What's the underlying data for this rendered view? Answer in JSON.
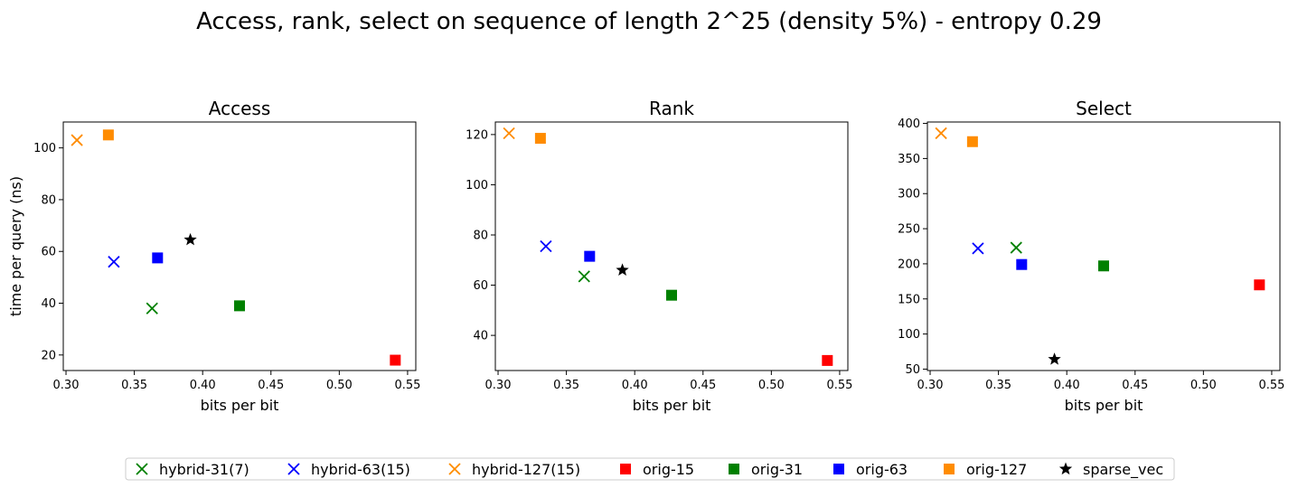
{
  "figure_title": "Access, rank, select on sequence of length 2^25 (density 5%) - entropy 0.29",
  "colors": {
    "hybrid-31(7)": "#008000",
    "hybrid-63(15)": "#0000ff",
    "hybrid-127(15)": "#ff8c00",
    "orig-15": "#ff0000",
    "orig-31": "#008000",
    "orig-63": "#0000ff",
    "orig-127": "#ff8c00",
    "sparse_vec": "#000000"
  },
  "legend": {
    "placement": "bottom-center",
    "entries": [
      {
        "label": "hybrid-31(7)",
        "marker": "x",
        "color": "#008000"
      },
      {
        "label": "hybrid-63(15)",
        "marker": "x",
        "color": "#0000ff"
      },
      {
        "label": "hybrid-127(15)",
        "marker": "x",
        "color": "#ff8c00"
      },
      {
        "label": "orig-15",
        "marker": "square",
        "color": "#ff0000"
      },
      {
        "label": "orig-31",
        "marker": "square",
        "color": "#008000"
      },
      {
        "label": "orig-63",
        "marker": "square",
        "color": "#0000ff"
      },
      {
        "label": "orig-127",
        "marker": "square",
        "color": "#ff8c00"
      },
      {
        "label": "sparse_vec",
        "marker": "star",
        "color": "#000000"
      }
    ]
  },
  "chart_data": [
    {
      "type": "scatter",
      "title": "Access",
      "xlabel": "bits per bit",
      "ylabel": "time per query (ns)",
      "xlim": [
        0.298,
        0.556
      ],
      "ylim": [
        14,
        110
      ],
      "xticks": [
        0.3,
        0.35,
        0.4,
        0.45,
        0.5,
        0.55
      ],
      "xtick_labels": [
        "0.30",
        "0.35",
        "0.40",
        "0.45",
        "0.50",
        "0.55"
      ],
      "yticks": [
        20,
        40,
        60,
        80,
        100
      ],
      "ytick_labels": [
        "20",
        "40",
        "60",
        "80",
        "100"
      ],
      "grid": false,
      "series": [
        {
          "name": "hybrid-31(7)",
          "marker": "x",
          "x": [
            0.363
          ],
          "y": [
            38
          ]
        },
        {
          "name": "hybrid-63(15)",
          "marker": "x",
          "x": [
            0.335
          ],
          "y": [
            56
          ]
        },
        {
          "name": "hybrid-127(15)",
          "marker": "x",
          "x": [
            0.308
          ],
          "y": [
            103
          ]
        },
        {
          "name": "orig-15",
          "marker": "square",
          "x": [
            0.541
          ],
          "y": [
            18
          ]
        },
        {
          "name": "orig-31",
          "marker": "square",
          "x": [
            0.427
          ],
          "y": [
            39
          ]
        },
        {
          "name": "orig-63",
          "marker": "square",
          "x": [
            0.367
          ],
          "y": [
            57.5
          ]
        },
        {
          "name": "orig-127",
          "marker": "square",
          "x": [
            0.331
          ],
          "y": [
            105
          ]
        },
        {
          "name": "sparse_vec",
          "marker": "star",
          "x": [
            0.391
          ],
          "y": [
            64.5
          ]
        }
      ]
    },
    {
      "type": "scatter",
      "title": "Rank",
      "xlabel": "bits per bit",
      "ylabel": "",
      "xlim": [
        0.298,
        0.556
      ],
      "ylim": [
        26,
        125
      ],
      "xticks": [
        0.3,
        0.35,
        0.4,
        0.45,
        0.5,
        0.55
      ],
      "xtick_labels": [
        "0.30",
        "0.35",
        "0.40",
        "0.45",
        "0.50",
        "0.55"
      ],
      "yticks": [
        40,
        60,
        80,
        100,
        120
      ],
      "ytick_labels": [
        "40",
        "60",
        "80",
        "100",
        "120"
      ],
      "grid": false,
      "series": [
        {
          "name": "hybrid-31(7)",
          "marker": "x",
          "x": [
            0.363
          ],
          "y": [
            63.5
          ]
        },
        {
          "name": "hybrid-63(15)",
          "marker": "x",
          "x": [
            0.335
          ],
          "y": [
            75.5
          ]
        },
        {
          "name": "hybrid-127(15)",
          "marker": "x",
          "x": [
            0.308
          ],
          "y": [
            120.5
          ]
        },
        {
          "name": "orig-15",
          "marker": "square",
          "x": [
            0.541
          ],
          "y": [
            30
          ]
        },
        {
          "name": "orig-31",
          "marker": "square",
          "x": [
            0.427
          ],
          "y": [
            56
          ]
        },
        {
          "name": "orig-63",
          "marker": "square",
          "x": [
            0.367
          ],
          "y": [
            71.5
          ]
        },
        {
          "name": "orig-127",
          "marker": "square",
          "x": [
            0.331
          ],
          "y": [
            118.5
          ]
        },
        {
          "name": "sparse_vec",
          "marker": "star",
          "x": [
            0.391
          ],
          "y": [
            66
          ]
        }
      ]
    },
    {
      "type": "scatter",
      "title": "Select",
      "xlabel": "bits per bit",
      "ylabel": "",
      "xlim": [
        0.298,
        0.556
      ],
      "ylim": [
        48,
        402
      ],
      "xticks": [
        0.3,
        0.35,
        0.4,
        0.45,
        0.5,
        0.55
      ],
      "xtick_labels": [
        "0.30",
        "0.35",
        "0.40",
        "0.45",
        "0.50",
        "0.55"
      ],
      "yticks": [
        50,
        100,
        150,
        200,
        250,
        300,
        350,
        400
      ],
      "ytick_labels": [
        "50",
        "100",
        "150",
        "200",
        "250",
        "300",
        "350",
        "400"
      ],
      "grid": false,
      "series": [
        {
          "name": "hybrid-31(7)",
          "marker": "x",
          "x": [
            0.363
          ],
          "y": [
            223
          ]
        },
        {
          "name": "hybrid-63(15)",
          "marker": "x",
          "x": [
            0.335
          ],
          "y": [
            222
          ]
        },
        {
          "name": "hybrid-127(15)",
          "marker": "x",
          "x": [
            0.308
          ],
          "y": [
            386
          ]
        },
        {
          "name": "orig-15",
          "marker": "square",
          "x": [
            0.541
          ],
          "y": [
            170
          ]
        },
        {
          "name": "orig-31",
          "marker": "square",
          "x": [
            0.427
          ],
          "y": [
            197
          ]
        },
        {
          "name": "orig-63",
          "marker": "square",
          "x": [
            0.367
          ],
          "y": [
            199
          ]
        },
        {
          "name": "orig-127",
          "marker": "square",
          "x": [
            0.331
          ],
          "y": [
            374
          ]
        },
        {
          "name": "sparse_vec",
          "marker": "star",
          "x": [
            0.391
          ],
          "y": [
            64
          ]
        }
      ]
    }
  ]
}
